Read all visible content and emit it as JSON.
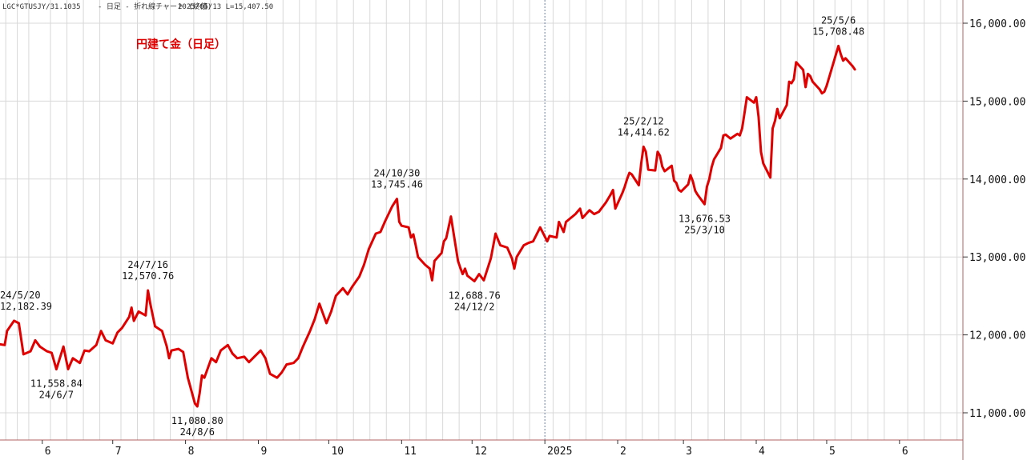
{
  "header": {
    "code": "LGC*GTUSJY/31.1035",
    "description": "- 日足 - 折れ線チャート (終値)",
    "last": "2025/05/13  L=15,407.50"
  },
  "colors": {
    "line": "#e00000",
    "title": "#e00000",
    "grid": "#d8d8d8",
    "frame": "#b06060"
  },
  "chart_data": {
    "type": "line",
    "title": "円建て金（日足）",
    "xlabel": "",
    "ylabel": "",
    "ylim": [
      10700,
      16300
    ],
    "xlim": [
      "2024-05-14",
      "2025-06-28"
    ],
    "grid": true,
    "yticks": [
      {
        "value": 11000,
        "label": "11,000.00"
      },
      {
        "value": 12000,
        "label": "12,000.00"
      },
      {
        "value": 13000,
        "label": "13,000.00"
      },
      {
        "value": 14000,
        "label": "14,000.00"
      },
      {
        "value": 15000,
        "label": "15,000.00"
      },
      {
        "value": 16000,
        "label": "16,000.00"
      }
    ],
    "month_starts": [
      {
        "date": "2024-06-01",
        "label": "6"
      },
      {
        "date": "2024-07-01",
        "label": "7"
      },
      {
        "date": "2024-08-01",
        "label": "8"
      },
      {
        "date": "2024-09-01",
        "label": "9"
      },
      {
        "date": "2024-10-01",
        "label": "10"
      },
      {
        "date": "2024-11-01",
        "label": "11"
      },
      {
        "date": "2024-12-01",
        "label": "12"
      },
      {
        "date": "2025-01-01",
        "label": "2025"
      },
      {
        "date": "2025-02-01",
        "label": "2"
      },
      {
        "date": "2025-03-01",
        "label": "3"
      },
      {
        "date": "2025-04-01",
        "label": "4"
      },
      {
        "date": "2025-05-01",
        "label": "5"
      },
      {
        "date": "2025-06-01",
        "label": "6"
      }
    ],
    "year_divider": "2025-01-01",
    "annotations": [
      {
        "date_label": "24/5/20",
        "value_label": "12,182.39",
        "date": "2024-05-20",
        "value": 12182.39,
        "position": "above"
      },
      {
        "date_label": "24/6/7",
        "value_label": "11,558.84",
        "date": "2024-06-07",
        "value": 11558.84,
        "position": "below"
      },
      {
        "date_label": "24/7/16",
        "value_label": "12,570.76",
        "date": "2024-07-16",
        "value": 12570.76,
        "position": "above"
      },
      {
        "date_label": "24/8/6",
        "value_label": "11,080.80",
        "date": "2024-08-06",
        "value": 11080.8,
        "position": "below"
      },
      {
        "date_label": "24/10/30",
        "value_label": "13,745.46",
        "date": "2024-10-30",
        "value": 13745.46,
        "position": "above"
      },
      {
        "date_label": "24/12/2",
        "value_label": "12,688.76",
        "date": "2024-12-02",
        "value": 12688.76,
        "position": "below"
      },
      {
        "date_label": "25/2/12",
        "value_label": "14,414.62",
        "date": "2025-02-12",
        "value": 14414.62,
        "position": "above"
      },
      {
        "date_label": "25/3/10",
        "value_label": "13,676.53",
        "date": "2025-03-10",
        "value": 13676.53,
        "position": "below"
      },
      {
        "date_label": "25/5/6",
        "value_label": "15,708.48",
        "date": "2025-05-06",
        "value": 15708.48,
        "position": "above"
      }
    ],
    "series": [
      {
        "points": [
          [
            "2024-05-14",
            11880
          ],
          [
            "2024-05-16",
            11870
          ],
          [
            "2024-05-17",
            12050
          ],
          [
            "2024-05-20",
            12182
          ],
          [
            "2024-05-22",
            12150
          ],
          [
            "2024-05-24",
            11750
          ],
          [
            "2024-05-27",
            11790
          ],
          [
            "2024-05-29",
            11930
          ],
          [
            "2024-05-31",
            11850
          ],
          [
            "2024-06-03",
            11790
          ],
          [
            "2024-06-05",
            11770
          ],
          [
            "2024-06-07",
            11559
          ],
          [
            "2024-06-10",
            11850
          ],
          [
            "2024-06-12",
            11560
          ],
          [
            "2024-06-14",
            11700
          ],
          [
            "2024-06-17",
            11640
          ],
          [
            "2024-06-19",
            11800
          ],
          [
            "2024-06-21",
            11790
          ],
          [
            "2024-06-24",
            11870
          ],
          [
            "2024-06-26",
            12050
          ],
          [
            "2024-06-28",
            11930
          ],
          [
            "2024-07-01",
            11890
          ],
          [
            "2024-07-03",
            12030
          ],
          [
            "2024-07-05",
            12090
          ],
          [
            "2024-07-08",
            12230
          ],
          [
            "2024-07-09",
            12350
          ],
          [
            "2024-07-10",
            12180
          ],
          [
            "2024-07-12",
            12300
          ],
          [
            "2024-07-15",
            12250
          ],
          [
            "2024-07-16",
            12571
          ],
          [
            "2024-07-17",
            12400
          ],
          [
            "2024-07-19",
            12110
          ],
          [
            "2024-07-22",
            12050
          ],
          [
            "2024-07-24",
            11850
          ],
          [
            "2024-07-25",
            11700
          ],
          [
            "2024-07-26",
            11800
          ],
          [
            "2024-07-29",
            11820
          ],
          [
            "2024-07-31",
            11780
          ],
          [
            "2024-08-02",
            11450
          ],
          [
            "2024-08-05",
            11120
          ],
          [
            "2024-08-06",
            11081
          ],
          [
            "2024-08-07",
            11250
          ],
          [
            "2024-08-08",
            11480
          ],
          [
            "2024-08-09",
            11450
          ],
          [
            "2024-08-12",
            11700
          ],
          [
            "2024-08-14",
            11650
          ],
          [
            "2024-08-16",
            11800
          ],
          [
            "2024-08-19",
            11870
          ],
          [
            "2024-08-21",
            11760
          ],
          [
            "2024-08-23",
            11700
          ],
          [
            "2024-08-26",
            11720
          ],
          [
            "2024-08-28",
            11650
          ],
          [
            "2024-08-30",
            11710
          ],
          [
            "2024-09-02",
            11800
          ],
          [
            "2024-09-04",
            11700
          ],
          [
            "2024-09-06",
            11500
          ],
          [
            "2024-09-09",
            11450
          ],
          [
            "2024-09-11",
            11520
          ],
          [
            "2024-09-13",
            11620
          ],
          [
            "2024-09-16",
            11640
          ],
          [
            "2024-09-18",
            11700
          ],
          [
            "2024-09-20",
            11850
          ],
          [
            "2024-09-23",
            12050
          ],
          [
            "2024-09-25",
            12200
          ],
          [
            "2024-09-27",
            12400
          ],
          [
            "2024-09-30",
            12150
          ],
          [
            "2024-10-02",
            12300
          ],
          [
            "2024-10-04",
            12500
          ],
          [
            "2024-10-07",
            12600
          ],
          [
            "2024-10-09",
            12520
          ],
          [
            "2024-10-11",
            12620
          ],
          [
            "2024-10-14",
            12750
          ],
          [
            "2024-10-16",
            12900
          ],
          [
            "2024-10-18",
            13100
          ],
          [
            "2024-10-21",
            13300
          ],
          [
            "2024-10-23",
            13320
          ],
          [
            "2024-10-25",
            13460
          ],
          [
            "2024-10-28",
            13650
          ],
          [
            "2024-10-30",
            13745
          ],
          [
            "2024-10-31",
            13450
          ],
          [
            "2024-11-01",
            13400
          ],
          [
            "2024-11-04",
            13380
          ],
          [
            "2024-11-05",
            13250
          ],
          [
            "2024-11-06",
            13290
          ],
          [
            "2024-11-07",
            13150
          ],
          [
            "2024-11-08",
            13000
          ],
          [
            "2024-11-11",
            12900
          ],
          [
            "2024-11-13",
            12850
          ],
          [
            "2024-11-14",
            12700
          ],
          [
            "2024-11-15",
            12950
          ],
          [
            "2024-11-18",
            13050
          ],
          [
            "2024-11-19",
            13200
          ],
          [
            "2024-11-20",
            13240
          ],
          [
            "2024-11-22",
            13520
          ],
          [
            "2024-11-25",
            12950
          ],
          [
            "2024-11-26",
            12860
          ],
          [
            "2024-11-27",
            12780
          ],
          [
            "2024-11-28",
            12850
          ],
          [
            "2024-11-29",
            12760
          ],
          [
            "2024-12-02",
            12689
          ],
          [
            "2024-12-04",
            12780
          ],
          [
            "2024-12-06",
            12700
          ],
          [
            "2024-12-09",
            12980
          ],
          [
            "2024-12-11",
            13300
          ],
          [
            "2024-12-13",
            13150
          ],
          [
            "2024-12-16",
            13120
          ],
          [
            "2024-12-18",
            12980
          ],
          [
            "2024-12-19",
            12850
          ],
          [
            "2024-12-20",
            13000
          ],
          [
            "2024-12-23",
            13150
          ],
          [
            "2024-12-25",
            13180
          ],
          [
            "2024-12-27",
            13200
          ],
          [
            "2024-12-30",
            13380
          ],
          [
            "2025-01-02",
            13200
          ],
          [
            "2025-01-03",
            13270
          ],
          [
            "2025-01-06",
            13250
          ],
          [
            "2025-01-07",
            13450
          ],
          [
            "2025-01-09",
            13320
          ],
          [
            "2025-01-10",
            13450
          ],
          [
            "2025-01-14",
            13550
          ],
          [
            "2025-01-16",
            13620
          ],
          [
            "2025-01-17",
            13500
          ],
          [
            "2025-01-20",
            13600
          ],
          [
            "2025-01-22",
            13550
          ],
          [
            "2025-01-24",
            13580
          ],
          [
            "2025-01-27",
            13700
          ],
          [
            "2025-01-29",
            13800
          ],
          [
            "2025-01-30",
            13860
          ],
          [
            "2025-01-31",
            13620
          ],
          [
            "2025-02-03",
            13820
          ],
          [
            "2025-02-04",
            13900
          ],
          [
            "2025-02-05",
            14000
          ],
          [
            "2025-02-06",
            14080
          ],
          [
            "2025-02-07",
            14060
          ],
          [
            "2025-02-10",
            13920
          ],
          [
            "2025-02-11",
            14200
          ],
          [
            "2025-02-12",
            14415
          ],
          [
            "2025-02-13",
            14350
          ],
          [
            "2025-02-14",
            14120
          ],
          [
            "2025-02-17",
            14110
          ],
          [
            "2025-02-18",
            14350
          ],
          [
            "2025-02-19",
            14300
          ],
          [
            "2025-02-20",
            14160
          ],
          [
            "2025-02-21",
            14100
          ],
          [
            "2025-02-24",
            14170
          ],
          [
            "2025-02-25",
            13980
          ],
          [
            "2025-02-26",
            13950
          ],
          [
            "2025-02-27",
            13860
          ],
          [
            "2025-02-28",
            13840
          ],
          [
            "2025-03-03",
            13930
          ],
          [
            "2025-03-04",
            14050
          ],
          [
            "2025-03-05",
            13970
          ],
          [
            "2025-03-06",
            13850
          ],
          [
            "2025-03-07",
            13800
          ],
          [
            "2025-03-10",
            13677
          ],
          [
            "2025-03-11",
            13900
          ],
          [
            "2025-03-12",
            14000
          ],
          [
            "2025-03-13",
            14150
          ],
          [
            "2025-03-14",
            14250
          ],
          [
            "2025-03-17",
            14400
          ],
          [
            "2025-03-18",
            14560
          ],
          [
            "2025-03-19",
            14570
          ],
          [
            "2025-03-21",
            14520
          ],
          [
            "2025-03-24",
            14580
          ],
          [
            "2025-03-25",
            14560
          ],
          [
            "2025-03-26",
            14650
          ],
          [
            "2025-03-27",
            14850
          ],
          [
            "2025-03-28",
            15050
          ],
          [
            "2025-03-31",
            14980
          ],
          [
            "2025-04-01",
            15050
          ],
          [
            "2025-04-02",
            14800
          ],
          [
            "2025-04-03",
            14350
          ],
          [
            "2025-04-04",
            14200
          ],
          [
            "2025-04-07",
            14020
          ],
          [
            "2025-04-08",
            14650
          ],
          [
            "2025-04-09",
            14750
          ],
          [
            "2025-04-10",
            14900
          ],
          [
            "2025-04-11",
            14780
          ],
          [
            "2025-04-14",
            14950
          ],
          [
            "2025-04-15",
            15250
          ],
          [
            "2025-04-16",
            15230
          ],
          [
            "2025-04-17",
            15280
          ],
          [
            "2025-04-18",
            15500
          ],
          [
            "2025-04-21",
            15400
          ],
          [
            "2025-04-22",
            15180
          ],
          [
            "2025-04-23",
            15350
          ],
          [
            "2025-04-24",
            15320
          ],
          [
            "2025-04-25",
            15250
          ],
          [
            "2025-04-28",
            15150
          ],
          [
            "2025-04-29",
            15100
          ],
          [
            "2025-04-30",
            15120
          ],
          [
            "2025-05-01",
            15200
          ],
          [
            "2025-05-06",
            15708
          ],
          [
            "2025-05-07",
            15600
          ],
          [
            "2025-05-08",
            15520
          ],
          [
            "2025-05-09",
            15550
          ],
          [
            "2025-05-12",
            15450
          ],
          [
            "2025-05-13",
            15407
          ]
        ]
      }
    ]
  }
}
